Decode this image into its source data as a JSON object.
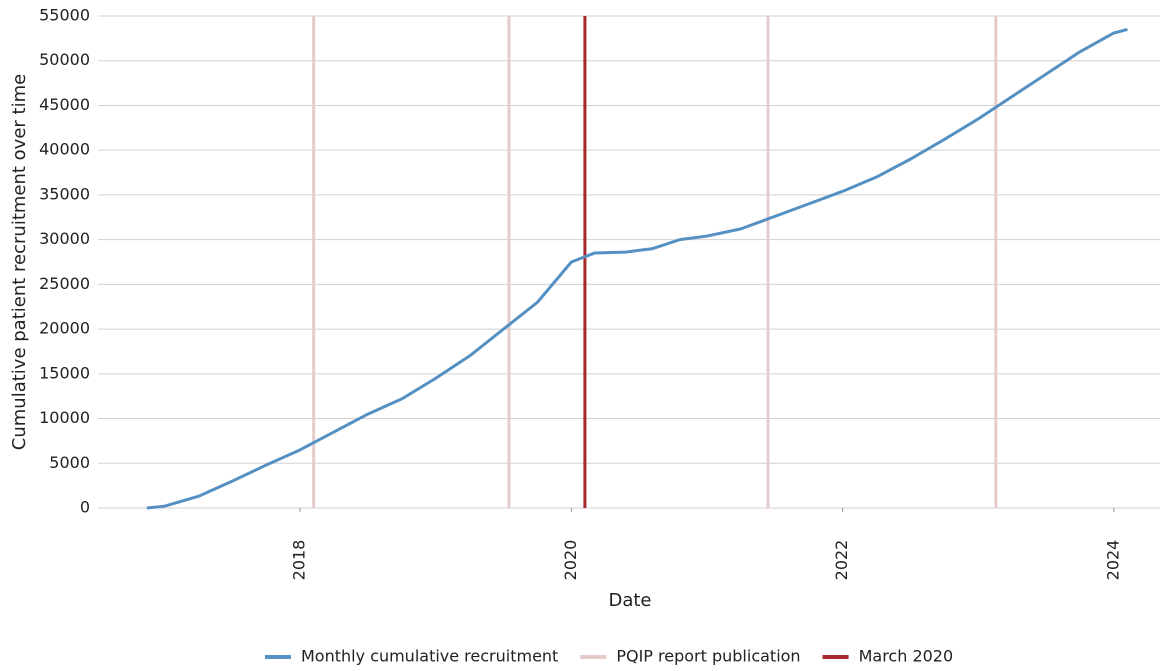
{
  "chart_data": {
    "type": "line",
    "x_label": "Date",
    "y_label": "Cumulative patient recruitment over time",
    "series": [
      {
        "name": "Monthly cumulative recruitment",
        "color": "#5590c2",
        "x": [
          2016.87,
          2017.0,
          2017.25,
          2017.5,
          2017.75,
          2018.0,
          2018.25,
          2018.5,
          2018.75,
          2019.0,
          2019.25,
          2019.5,
          2019.75,
          2020.0,
          2020.17,
          2020.4,
          2020.6,
          2020.8,
          2021.0,
          2021.25,
          2021.5,
          2021.75,
          2022.0,
          2022.25,
          2022.5,
          2022.75,
          2023.0,
          2023.25,
          2023.5,
          2023.75,
          2024.0,
          2024.1
        ],
        "values": [
          0,
          200,
          1300,
          3000,
          4800,
          6500,
          8500,
          10500,
          12200,
          14500,
          17000,
          20000,
          23000,
          27500,
          28500,
          28600,
          29000,
          30000,
          30400,
          31200,
          32600,
          34000,
          35400,
          37000,
          39000,
          41200,
          43500,
          46000,
          48500,
          51000,
          53100,
          53500
        ]
      }
    ],
    "vlines": [
      {
        "name": "PQIP report publication",
        "color": "#e6cbcb",
        "x": [
          2018.1,
          2019.54,
          2021.45,
          2023.13
        ]
      },
      {
        "name": "March 2020",
        "color": "#a8282c",
        "x": [
          2020.1
        ]
      }
    ],
    "xlim": [
      2016.51,
      2024.34
    ],
    "xticks": [
      2018,
      2020,
      2022,
      2024
    ],
    "ylim": [
      0,
      55000
    ],
    "yticks": [
      0,
      5000,
      10000,
      15000,
      20000,
      25000,
      30000,
      35000,
      40000,
      45000,
      50000,
      55000
    ],
    "grid": true,
    "legend": "bottom"
  }
}
